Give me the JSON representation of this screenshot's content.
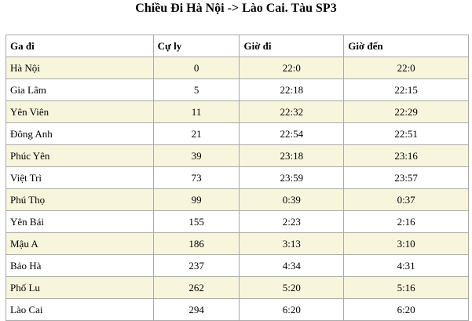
{
  "header": {
    "title": "Chiều Đi Hà Nội -> Lào Cai. Tàu SP3"
  },
  "table": {
    "columns": [
      "Ga đi",
      "Cự ly",
      "Giờ đi",
      "Giờ đến"
    ],
    "rows": [
      [
        "Hà Nội",
        0,
        "22:0",
        "22:0"
      ],
      [
        "Gia Lâm",
        5,
        "22:18",
        "22:15"
      ],
      [
        "Yên Viên",
        11,
        "22:32",
        "22:29"
      ],
      [
        "Đông Anh",
        21,
        "22:54",
        "22:51"
      ],
      [
        "Phúc Yên",
        39,
        "23:18",
        "23:16"
      ],
      [
        "Việt Trì",
        73,
        "23:59",
        "23:57"
      ],
      [
        "Phú Thọ",
        99,
        "0:39",
        "0:37"
      ],
      [
        "Yên Bái",
        155,
        "2:23",
        "2:16"
      ],
      [
        "Mậu A",
        186,
        "3:13",
        "3:10"
      ],
      [
        "Bảo Hà",
        237,
        "4:34",
        "4:31"
      ],
      [
        "Phố Lu",
        262,
        "5:20",
        "5:16"
      ],
      [
        "Lào Cai",
        294,
        "6:20",
        "6:20"
      ]
    ]
  }
}
